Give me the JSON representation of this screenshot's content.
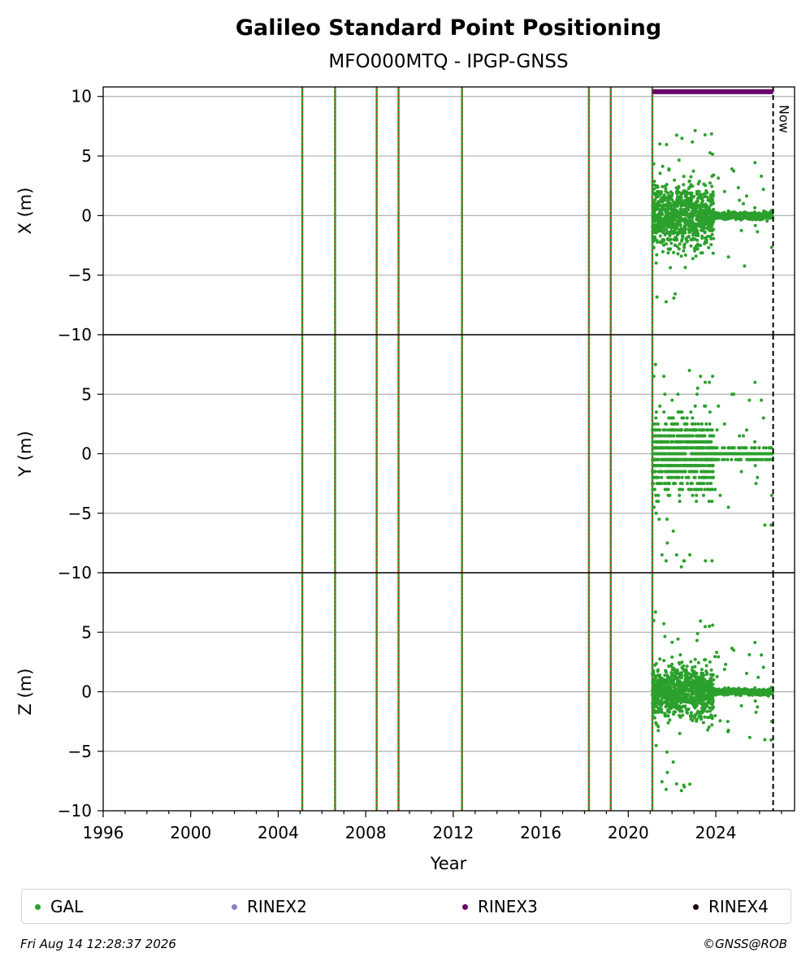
{
  "chart_data": {
    "type": "scatter",
    "title": "Galileo Standard Point Positioning",
    "subtitle": "MFO000MTQ - IPGP-GNSS",
    "xlabel": "Year",
    "xlim": [
      1996,
      2027.6
    ],
    "xticks": [
      1996,
      2000,
      2004,
      2008,
      2012,
      2016,
      2020,
      2024
    ],
    "panels": [
      {
        "ylabel": "X (m)",
        "ylim": [
          -10,
          10.8
        ],
        "yticks": [
          10,
          5,
          0,
          -5,
          -10
        ],
        "yticklabels": [
          "10",
          "5",
          "0",
          "−5",
          "−10"
        ]
      },
      {
        "ylabel": "Y (m)",
        "ylim": [
          -10,
          10
        ],
        "yticks": [
          5,
          0,
          -5,
          -10
        ],
        "yticklabels": [
          "5",
          "0",
          "−5",
          "−10"
        ]
      },
      {
        "ylabel": "Z (m)",
        "ylim": [
          -10,
          10
        ],
        "yticks": [
          5,
          0,
          -5,
          -10
        ],
        "yticklabels": [
          "5",
          "0",
          "−5",
          "−10"
        ]
      }
    ],
    "event_lines": [
      2005.1,
      2006.6,
      2008.5,
      2009.5,
      2012.4,
      2018.2,
      2019.2,
      2021.1
    ],
    "data_start": 2021.1,
    "now_line": {
      "x": 2026.62,
      "label": "Now"
    },
    "rinex3_bar": {
      "start": 2021.1,
      "end": 2026.62,
      "y": 10.4
    },
    "series": [
      {
        "name": "GAL",
        "color": "#2ca02c",
        "segments": [
          {
            "x0": 2021.1,
            "x1": 2023.9,
            "spread": [
              3.0,
              3.5,
              2.5
            ],
            "outliers": [
              7.5,
              9.5,
              8.5
            ]
          },
          {
            "x0": 2023.9,
            "x1": 2026.6,
            "spread": [
              0.35,
              0.45,
              0.3
            ],
            "outliers": [
              4.5,
              6.0,
              4.2
            ]
          }
        ]
      },
      {
        "name": "RINEX2",
        "color": "#8c7fbf"
      },
      {
        "name": "RINEX3",
        "color": "#6a006a"
      },
      {
        "name": "RINEX4",
        "color": "#1a0010"
      }
    ],
    "grid": true,
    "legend_position": "bottom"
  },
  "footer": {
    "timestamp": "Fri Aug 14 12:28:37 2026",
    "credit": "©GNSS@ROB"
  }
}
